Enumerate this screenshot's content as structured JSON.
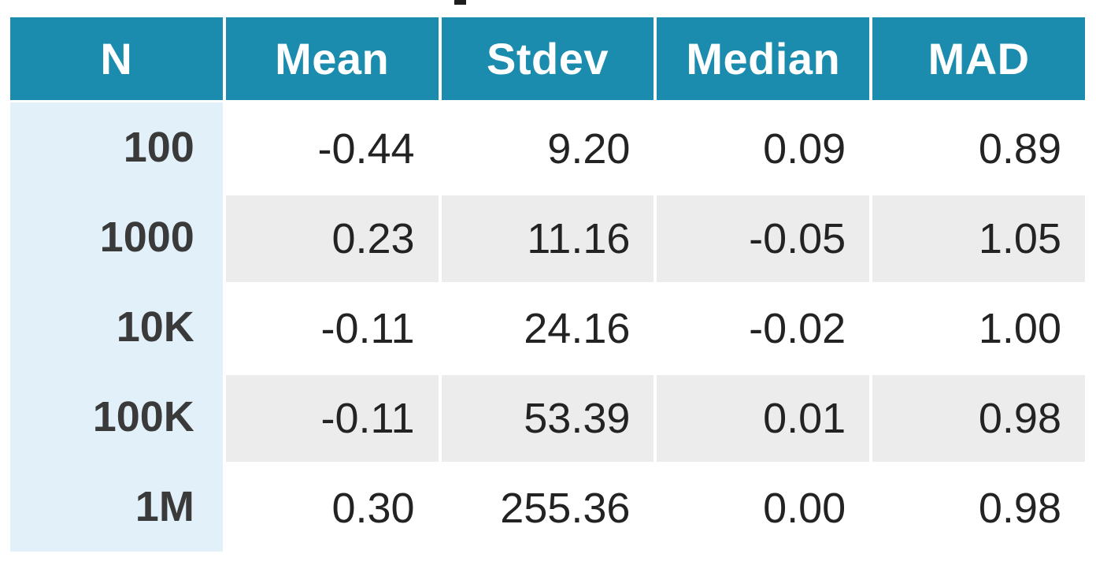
{
  "colors": {
    "header_bg": "#1b8cae",
    "header_text": "#ffffff",
    "row_label_bg": "#e2f1f9",
    "stripe_bg": "#ececec",
    "body_text": "#232323",
    "page_bg": "#ffffff"
  },
  "chart_data": {
    "type": "table",
    "columns": [
      "N",
      "Mean",
      "Stdev",
      "Median",
      "MAD"
    ],
    "rows": [
      [
        "100",
        "-0.44",
        "9.20",
        "0.09",
        "0.89"
      ],
      [
        "1000",
        "0.23",
        "11.16",
        "-0.05",
        "1.05"
      ],
      [
        "10K",
        "-0.11",
        "24.16",
        "-0.02",
        "1.00"
      ],
      [
        "100K",
        "-0.11",
        "53.39",
        "0.01",
        "0.98"
      ],
      [
        "1M",
        "0.30",
        "255.36",
        "0.00",
        "0.98"
      ]
    ],
    "layout_hints": {
      "header_alignment": "center",
      "cell_alignment": "right",
      "striped_rows": [
        2,
        4
      ],
      "label_column_highlighted": true
    }
  }
}
